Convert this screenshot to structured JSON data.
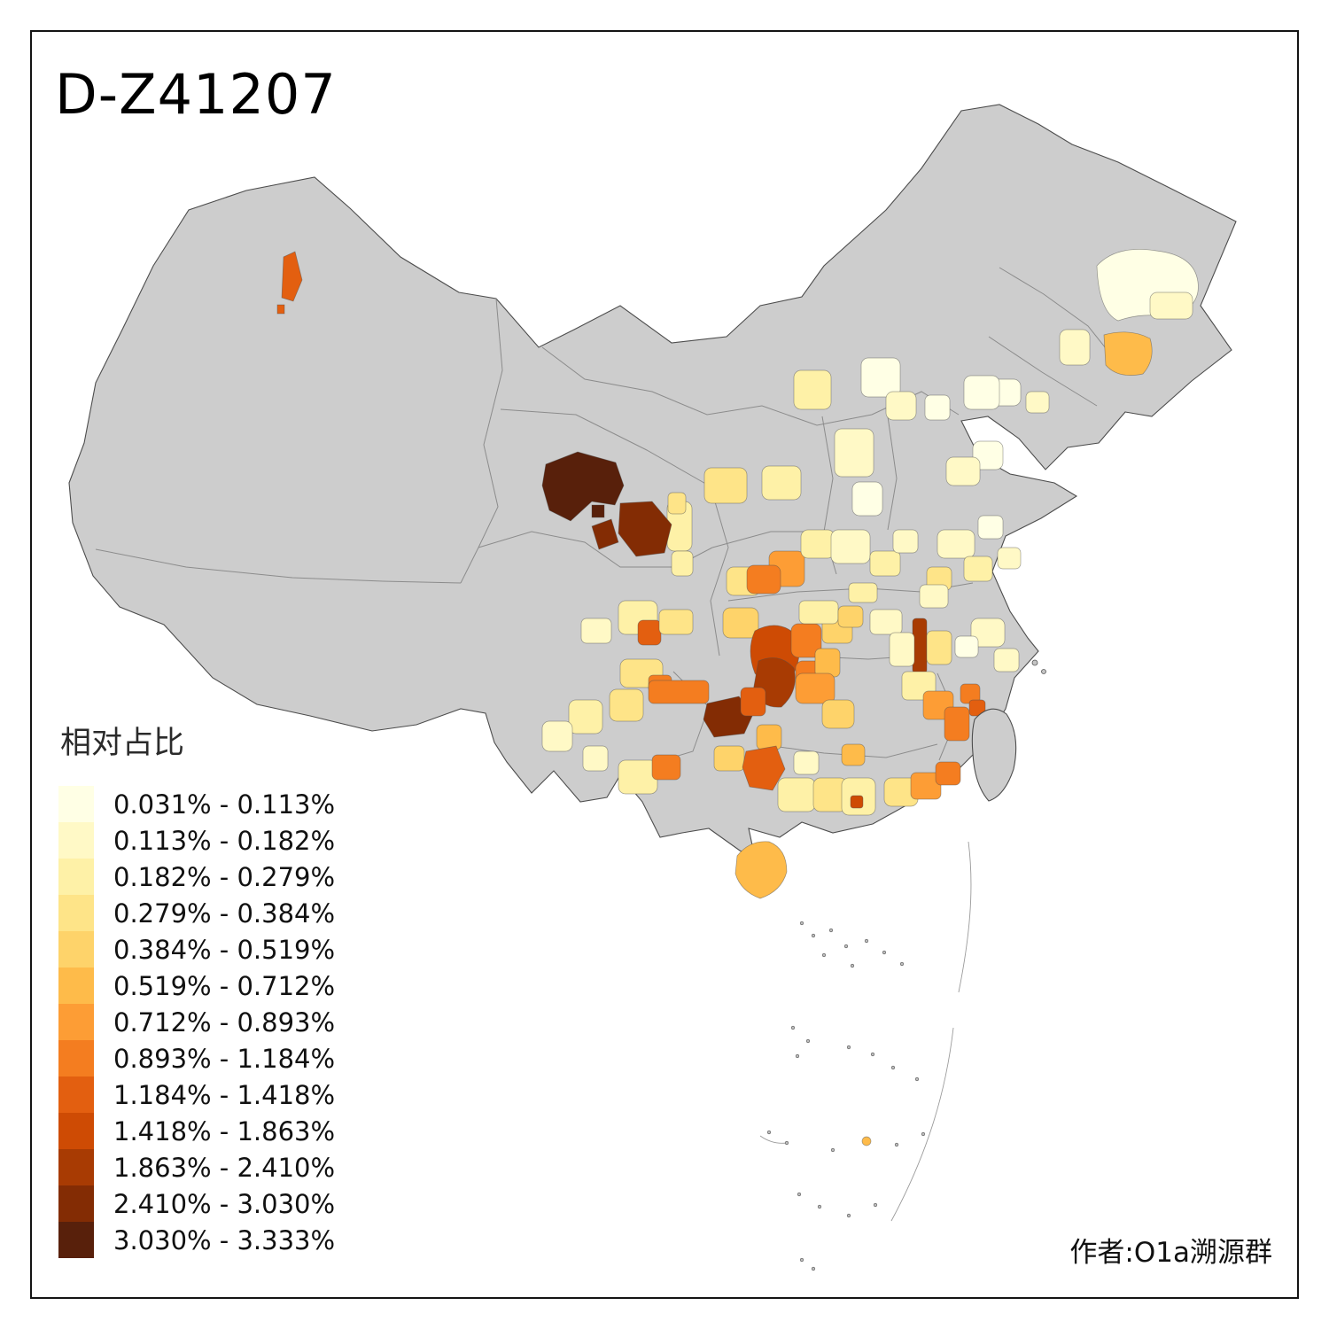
{
  "page": {
    "title": "D-Z41207",
    "author": "作者:O1a溯源群"
  },
  "legend": {
    "title": "相对占比",
    "items": [
      {
        "label": "0.031% - 0.113%",
        "color": "#FFFFE5"
      },
      {
        "label": "0.113% - 0.182%",
        "color": "#FFF9C6"
      },
      {
        "label": "0.182% - 0.279%",
        "color": "#FEF1A7"
      },
      {
        "label": "0.279% - 0.384%",
        "color": "#FEE488"
      },
      {
        "label": "0.384% - 0.519%",
        "color": "#FED36A"
      },
      {
        "label": "0.519% - 0.712%",
        "color": "#FEBB4A"
      },
      {
        "label": "0.712% - 0.893%",
        "color": "#FD9D35"
      },
      {
        "label": "0.893% - 1.184%",
        "color": "#F47D20"
      },
      {
        "label": "1.184% - 1.418%",
        "color": "#E35F10"
      },
      {
        "label": "1.418% - 1.863%",
        "color": "#CE4B04"
      },
      {
        "label": "1.863% - 2.410%",
        "color": "#A83B03"
      },
      {
        "label": "2.410% - 3.030%",
        "color": "#832C04"
      },
      {
        "label": "3.030% - 3.333%",
        "color": "#58200B"
      }
    ]
  },
  "map": {
    "type": "choropleth",
    "region": "China prefectures",
    "no_data_color": "#CDCDCD",
    "outline_color": "#4D4D4D",
    "province_border_color": "#8C8C8C",
    "background": "#FFFFFF"
  }
}
